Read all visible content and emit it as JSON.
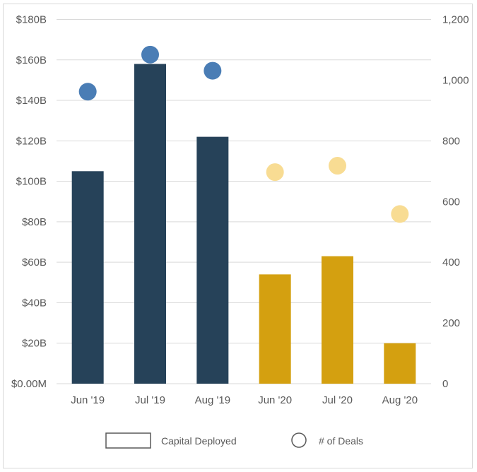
{
  "chart_data": {
    "type": "bar+scatter",
    "categories": [
      "Jun '19",
      "Jul '19",
      "Aug '19",
      "Jun '20",
      "Jul '20",
      "Aug '20"
    ],
    "series": [
      {
        "name": "Capital Deployed",
        "type": "bar",
        "axis": "left",
        "unit": "$B",
        "values": [
          105,
          158,
          122,
          54,
          63,
          20
        ],
        "colors": [
          "#264259",
          "#264259",
          "#264259",
          "#d4a010",
          "#d4a010",
          "#d4a010"
        ]
      },
      {
        "name": "# of Deals",
        "type": "scatter",
        "axis": "right",
        "values": [
          962,
          1084,
          1031,
          697,
          718,
          559
        ],
        "colors": [
          "#4a7db5",
          "#4a7db5",
          "#4a7db5",
          "#f8dc93",
          "#f8dc93",
          "#f8dc93"
        ]
      }
    ],
    "left_axis": {
      "ylim": [
        0,
        180
      ],
      "ticks": [
        0,
        20,
        40,
        60,
        80,
        100,
        120,
        140,
        160,
        180
      ],
      "tick_labels": [
        "$0.00M",
        "$20B",
        "$40B",
        "$60B",
        "$80B",
        "$100B",
        "$120B",
        "$140B",
        "$160B",
        "$180B"
      ]
    },
    "right_axis": {
      "ylim": [
        0,
        1200
      ],
      "ticks": [
        0,
        200,
        400,
        600,
        800,
        1000,
        1200
      ],
      "tick_labels": [
        "0",
        "200",
        "400",
        "600",
        "800",
        "1,000",
        "1,200"
      ]
    },
    "grid": true,
    "legend": {
      "placement": "bottom",
      "entries": [
        "Capital Deployed",
        "# of Deals"
      ]
    }
  }
}
